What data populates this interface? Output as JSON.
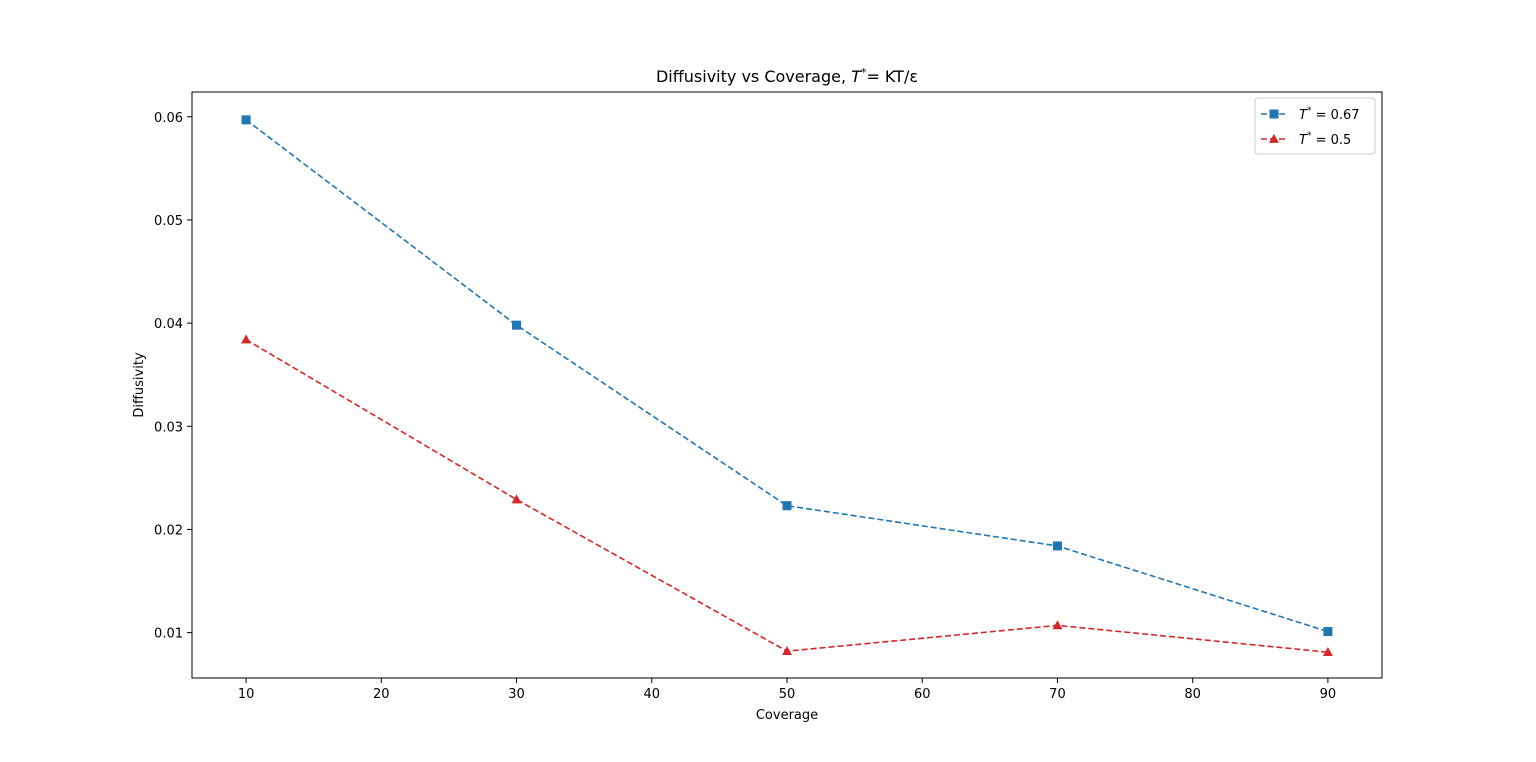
{
  "chart_data": {
    "type": "line",
    "title": {
      "prefix": "Diffusivity vs Coverage, ",
      "symbol": "T",
      "sup": "*",
      "suffix": "= KT/ε"
    },
    "xlabel": "Coverage",
    "ylabel": "Diffusivity",
    "xlim": [
      6,
      94
    ],
    "ylim": [
      0.0056,
      0.0624
    ],
    "xticks": [
      10,
      20,
      30,
      40,
      50,
      60,
      70,
      80,
      90
    ],
    "xtick_labels": [
      "10",
      "20",
      "30",
      "40",
      "50",
      "60",
      "70",
      "80",
      "90"
    ],
    "yticks": [
      0.01,
      0.02,
      0.03,
      0.04,
      0.05,
      0.06
    ],
    "ytick_labels": [
      "0.01",
      "0.02",
      "0.03",
      "0.04",
      "0.05",
      "0.06"
    ],
    "grid": false,
    "legend_position": "top-right",
    "x": [
      10,
      30,
      50,
      70,
      90
    ],
    "series": [
      {
        "name": "T* = 0.67",
        "legend": {
          "symbol": "T",
          "sup": "*",
          "suffix": " = 0.67"
        },
        "values": [
          0.0597,
          0.0398,
          0.0223,
          0.0184,
          0.0101
        ],
        "color": "#1f77b4",
        "marker": "square",
        "linestyle": "dashed"
      },
      {
        "name": "T* = 0.5",
        "legend": {
          "symbol": "T",
          "sup": "*",
          "suffix": " = 0.5"
        },
        "values": [
          0.0384,
          0.0229,
          0.0082,
          0.0107,
          0.0081
        ],
        "color": "#d62728",
        "marker": "triangle",
        "linestyle": "dashed"
      }
    ]
  }
}
